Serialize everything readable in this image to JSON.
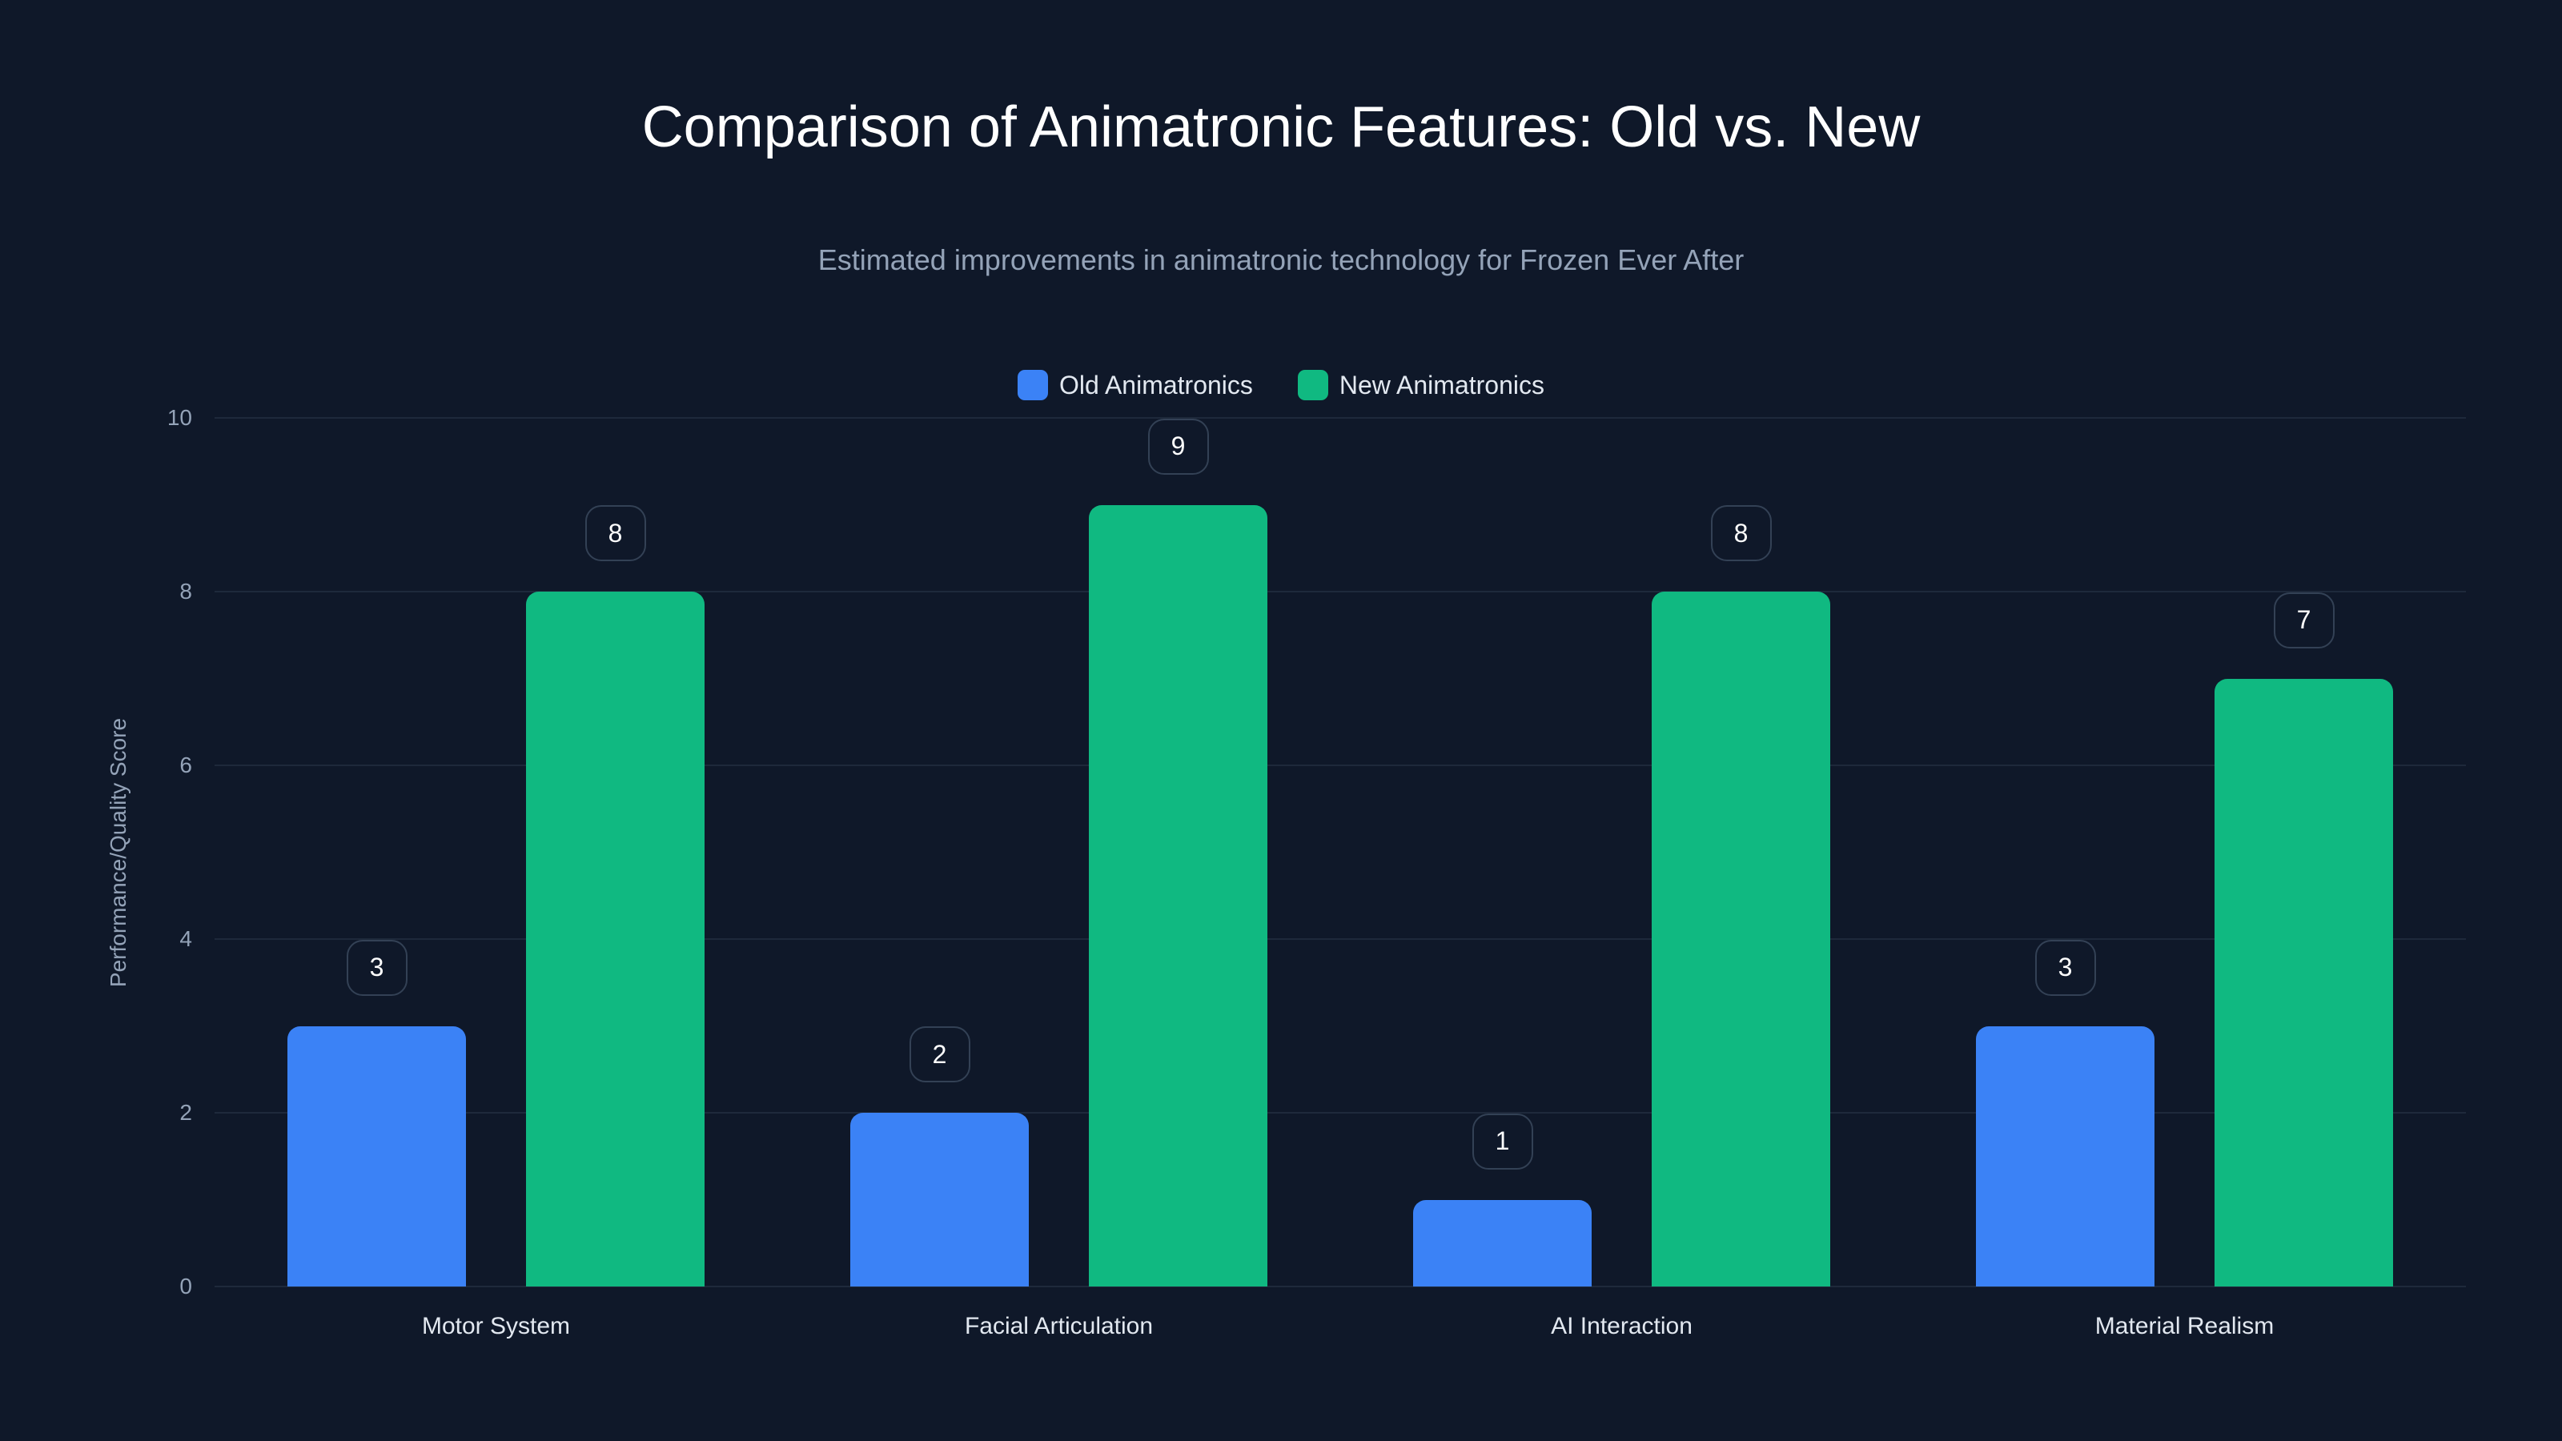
{
  "header": {
    "title": "Comparison of Animatronic Features: Old vs. New",
    "subtitle": "Estimated improvements in animatronic technology for Frozen Ever After"
  },
  "legend": [
    {
      "label": "Old Animatronics",
      "color": "#3b82f6"
    },
    {
      "label": "New Animatronics",
      "color": "#10b981"
    }
  ],
  "axes": {
    "ylabel": "Performance/Quality Score",
    "yticks": [
      "0",
      "2",
      "4",
      "6",
      "8",
      "10"
    ],
    "xticks": [
      "Motor System",
      "Facial Articulation",
      "AI Interaction",
      "Material Realism"
    ]
  },
  "chart_data": {
    "type": "bar",
    "title": "Comparison of Animatronic Features: Old vs. New",
    "subtitle": "Estimated improvements in animatronic technology for Frozen Ever After",
    "categories": [
      "Motor System",
      "Facial Articulation",
      "AI Interaction",
      "Material Realism"
    ],
    "series": [
      {
        "name": "Old Animatronics",
        "color": "#3b82f6",
        "values": [
          3,
          2,
          1,
          3
        ]
      },
      {
        "name": "New Animatronics",
        "color": "#10b981",
        "values": [
          8,
          9,
          8,
          7
        ]
      }
    ],
    "xlabel": "",
    "ylabel": "Performance/Quality Score",
    "ylim": [
      0,
      10
    ],
    "yticks": [
      0,
      2,
      4,
      6,
      8,
      10
    ],
    "grid": true,
    "legend_position": "top-center",
    "data_labels": true
  }
}
